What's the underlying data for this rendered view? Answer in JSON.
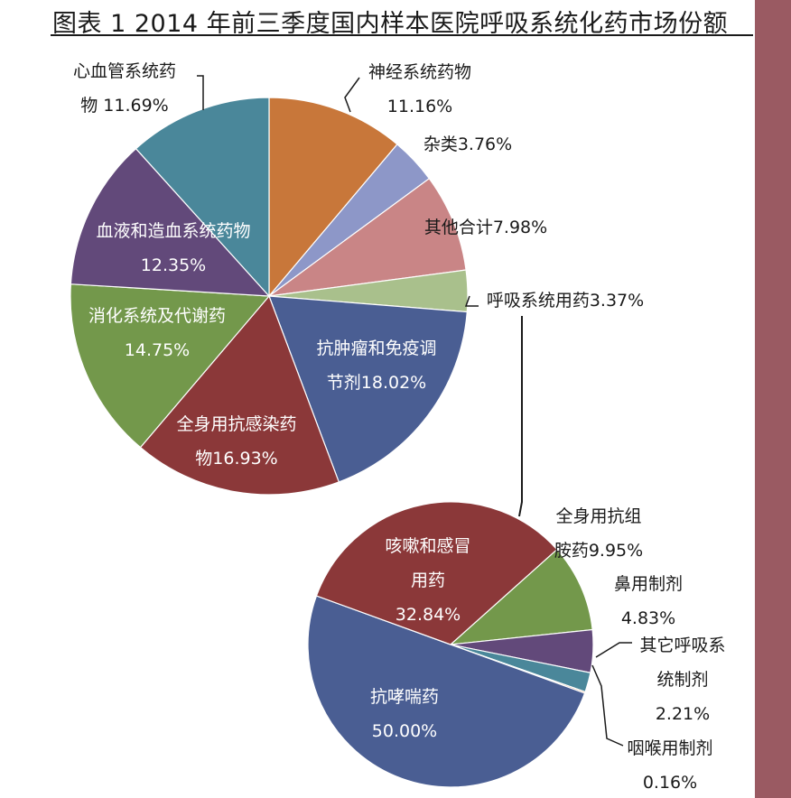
{
  "title": "图表 1  2014 年前三季度国内样本医院呼吸系统化药市场份额",
  "colors": {
    "frame_right": "#9a5a62",
    "text": "#1a1a1a",
    "text_white": "#ffffff"
  },
  "chart_data": [
    {
      "type": "pie",
      "unit": "%",
      "slices": [
        {
          "label": "神经系统药物",
          "value": 11.16,
          "color": "#c8773a",
          "text": [
            "神经系统药物",
            "11.16%"
          ]
        },
        {
          "label": "杂类",
          "value": 3.76,
          "color": "#8d97c8",
          "text": [
            "杂类3.76%"
          ]
        },
        {
          "label": "其他合计",
          "value": 7.98,
          "color": "#c98586",
          "text": [
            "其他合计7.98%"
          ]
        },
        {
          "label": "呼吸系统用药",
          "value": 3.37,
          "color": "#a9c08c",
          "text": [
            "呼吸系统用药3.37%"
          ]
        },
        {
          "label": "抗肿瘤和免疫调节剂",
          "value": 18.02,
          "color": "#4a5e93",
          "text": [
            "抗肿瘤和免疫调",
            "节剂18.02%"
          ]
        },
        {
          "label": "全身用抗感染药物",
          "value": 16.93,
          "color": "#8b3839",
          "text": [
            "全身用抗感染药",
            "物16.93%"
          ]
        },
        {
          "label": "消化系统及代谢药",
          "value": 14.75,
          "color": "#73984b",
          "text": [
            "消化系统及代谢药",
            "14.75%"
          ]
        },
        {
          "label": "血液和造血系统药物",
          "value": 12.35,
          "color": "#62497a",
          "text": [
            "血液和造血系统药物",
            "12.35%"
          ]
        },
        {
          "label": "心血管系统药物",
          "value": 11.69,
          "color": "#4a879a",
          "text": [
            "心血管系统药",
            "物 11.69%"
          ]
        }
      ]
    },
    {
      "type": "pie",
      "unit": "%",
      "slices": [
        {
          "label": "全身用抗组胺药",
          "value": 9.95,
          "color": "#73984b",
          "text": [
            "全身用抗组",
            "胺药9.95%"
          ]
        },
        {
          "label": "鼻用制剂",
          "value": 4.83,
          "color": "#62497a",
          "text": [
            "鼻用制剂",
            "4.83%"
          ]
        },
        {
          "label": "其它呼吸系统制剂",
          "value": 2.21,
          "color": "#4a879a",
          "text": [
            "其它呼吸系",
            "统制剂",
            "2.21%"
          ]
        },
        {
          "label": "咽喉用制剂",
          "value": 0.16,
          "color": "#c8773a",
          "text": [
            "咽喉用制剂",
            "0.16%"
          ]
        },
        {
          "label": "抗哮喘药",
          "value": 50.0,
          "color": "#4a5e93",
          "text": [
            "抗哮喘药",
            "50.00%"
          ]
        },
        {
          "label": "咳嗽和感冒用药",
          "value": 32.84,
          "color": "#8b3839",
          "text": [
            "咳嗽和感冒",
            "用药",
            "32.84%"
          ]
        }
      ]
    }
  ]
}
